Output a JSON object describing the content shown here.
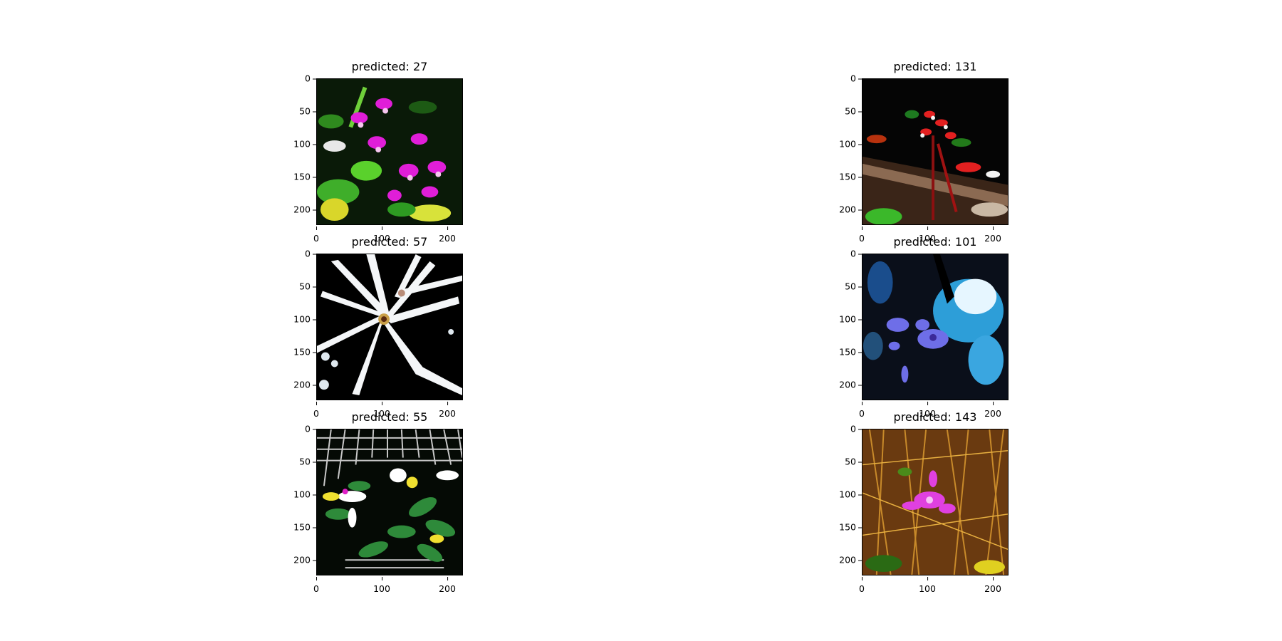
{
  "panels": [
    {
      "title": "predicted: 27",
      "image": "pink orchids among green leaves"
    },
    {
      "title": "predicted: 131",
      "image": "red orchid on dark background"
    },
    {
      "title": "predicted: 57",
      "image": "white spidery orchid on black"
    },
    {
      "title": "predicted: 101",
      "image": "purple orchid against blue sky"
    },
    {
      "title": "predicted: 55",
      "image": "white orchid among leaves and grid"
    },
    {
      "title": "predicted: 143",
      "image": "pink orchid in dry brown grass"
    }
  ],
  "axes": {
    "y_ticks": [
      "0",
      "50",
      "100",
      "150",
      "200"
    ],
    "x_ticks": [
      "0",
      "100",
      "200"
    ]
  }
}
